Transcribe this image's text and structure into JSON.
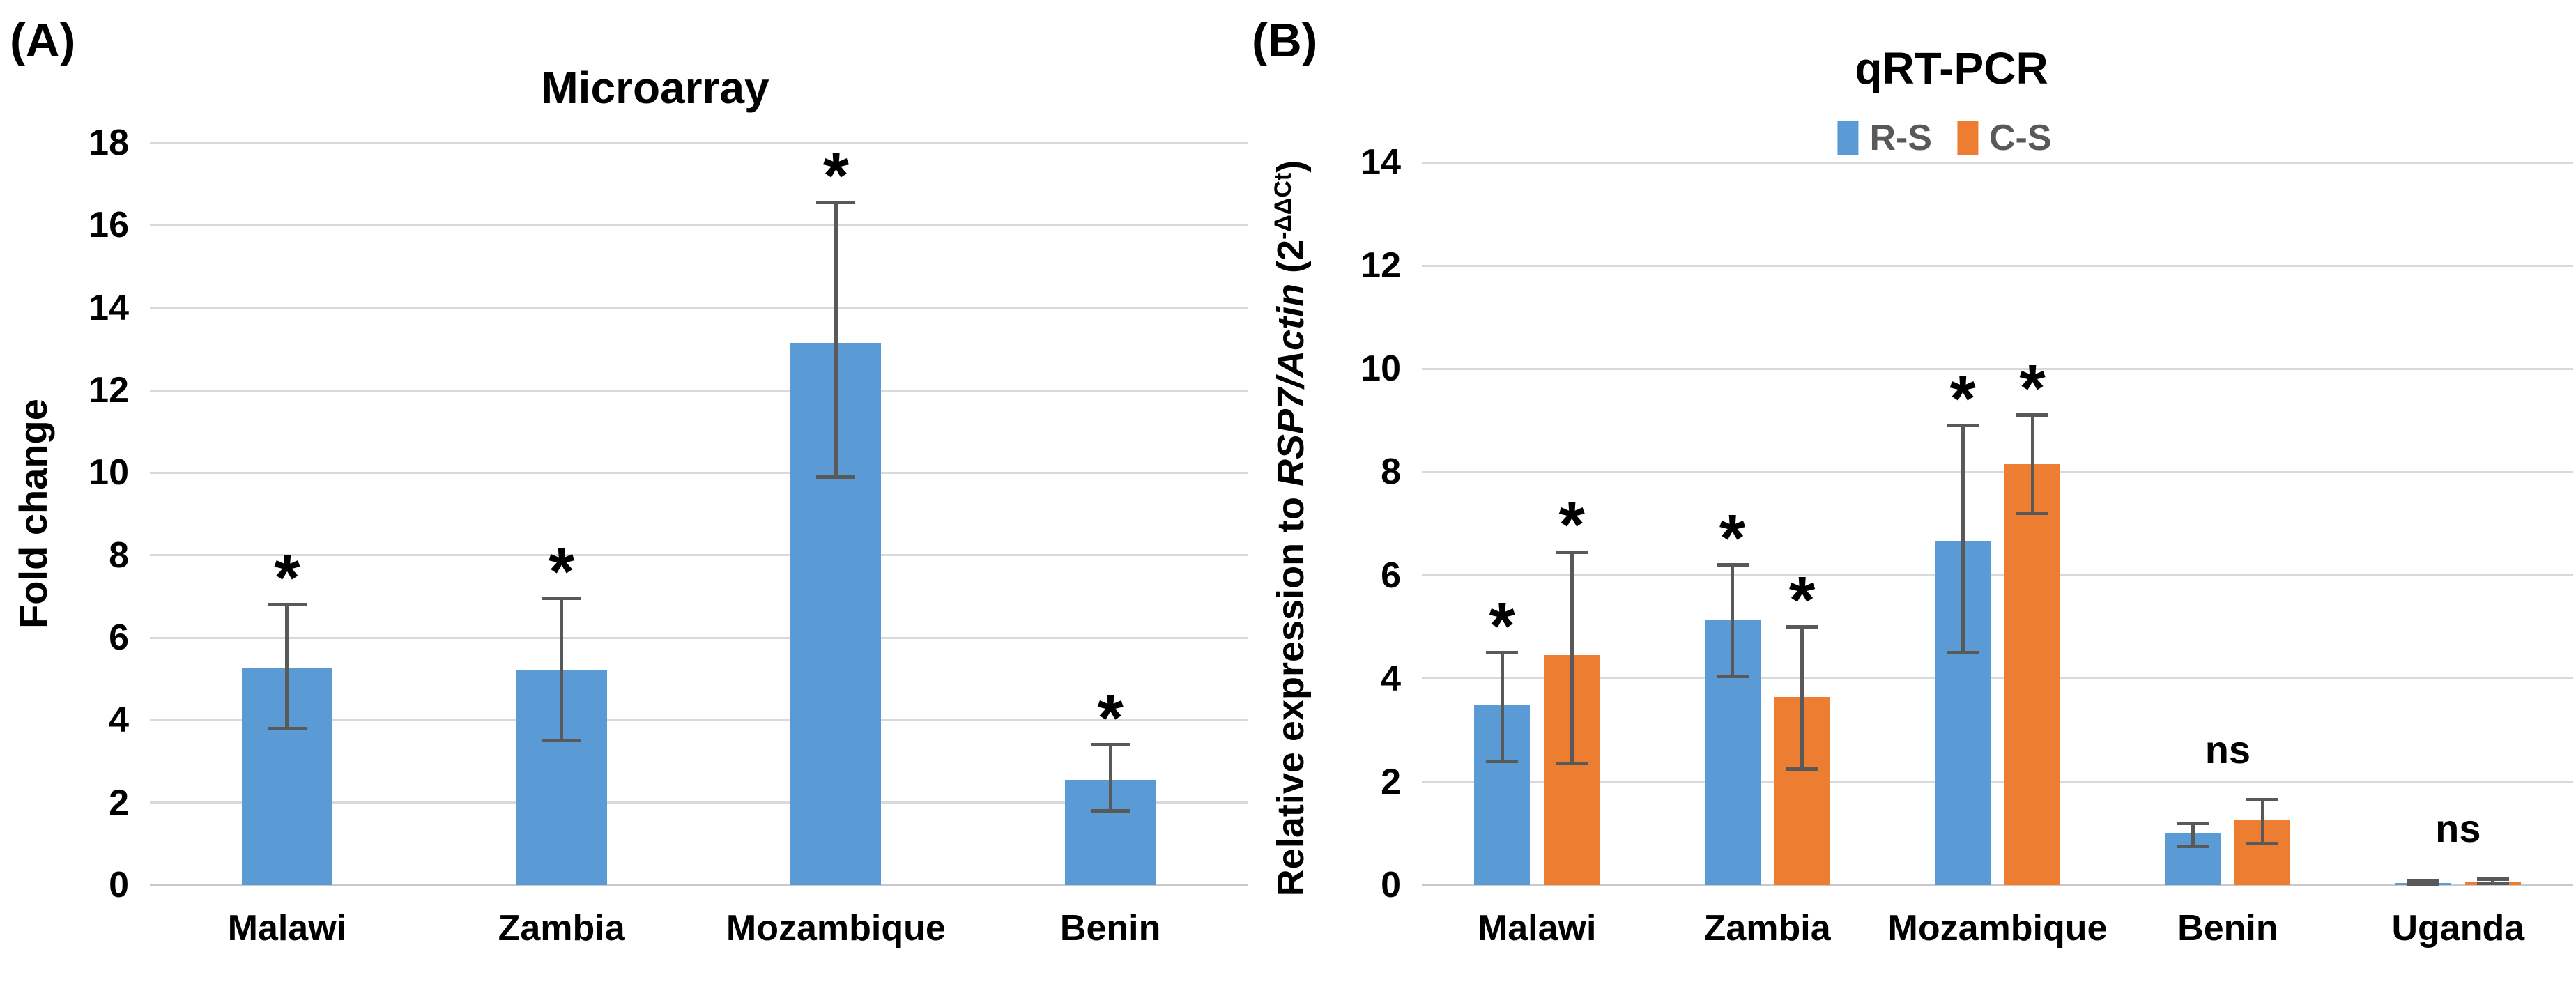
{
  "figure_title": "Microarray and qRT-PCR expression figure",
  "colors": {
    "series_blue": "#5B9BD5",
    "series_orange": "#ED7D31",
    "error_bar": "#595959",
    "gridline": "#D9D9D9",
    "axis_line": "#C9C9C9",
    "legend_text": "#595959",
    "text": "#000000"
  },
  "chart_data": [
    {
      "panel": "(A)",
      "type": "bar",
      "title": "Microarray",
      "xlabel": "",
      "ylabel": "Fold change",
      "ylabel_parts": [
        {
          "text": "Fold change",
          "style": "normal"
        }
      ],
      "ylim": [
        0,
        18
      ],
      "ytick_step": 2,
      "yticks": [
        0,
        2,
        4,
        6,
        8,
        10,
        12,
        14,
        16,
        18
      ],
      "grid": true,
      "legend": null,
      "categories": [
        "Malawi",
        "Zambia",
        "Mozambique",
        "Benin"
      ],
      "series": [
        {
          "name": "Fold change",
          "color": "#5B9BD5",
          "values": [
            5.25,
            5.2,
            13.15,
            2.55
          ],
          "error_low": [
            3.8,
            3.5,
            9.9,
            1.8
          ],
          "error_high": [
            6.8,
            6.95,
            16.55,
            3.4
          ],
          "significance": [
            "*",
            "*",
            "*",
            "*"
          ]
        }
      ],
      "group_significance": [
        null,
        null,
        null,
        null
      ]
    },
    {
      "panel": "(B)",
      "type": "bar",
      "title": "qRT-PCR",
      "xlabel": "",
      "ylabel": "Relative expression to RSP7/Actin (2-ΔΔCt)",
      "ylabel_parts": [
        {
          "text": "Relative expression to ",
          "style": "normal"
        },
        {
          "text": "RSP7/Actin",
          "style": "italic"
        },
        {
          "text": " (2",
          "style": "normal"
        },
        {
          "text": "-ΔΔCt",
          "style": "superscript"
        },
        {
          "text": ")",
          "style": "normal"
        }
      ],
      "ylim": [
        0,
        14
      ],
      "ytick_step": 2,
      "yticks": [
        0,
        2,
        4,
        6,
        8,
        10,
        12,
        14
      ],
      "grid": true,
      "legend": {
        "position": "top",
        "entries": [
          {
            "label": "R-S",
            "color": "#5B9BD5"
          },
          {
            "label": "C-S",
            "color": "#ED7D31"
          }
        ]
      },
      "categories": [
        "Malawi",
        "Zambia",
        "Mozambique",
        "Benin",
        "Uganda"
      ],
      "series": [
        {
          "name": "R-S",
          "color": "#5B9BD5",
          "values": [
            3.5,
            5.15,
            6.65,
            1.0,
            0.04
          ],
          "error_low": [
            2.4,
            4.05,
            4.5,
            0.75,
            0.02
          ],
          "error_high": [
            4.5,
            6.2,
            8.9,
            1.2,
            0.07
          ],
          "significance": [
            "*",
            "*",
            "*",
            null,
            null
          ]
        },
        {
          "name": "C-S",
          "color": "#ED7D31",
          "values": [
            4.45,
            3.65,
            8.15,
            1.25,
            0.07
          ],
          "error_low": [
            2.35,
            2.25,
            7.2,
            0.8,
            0.04
          ],
          "error_high": [
            6.45,
            5.0,
            9.1,
            1.65,
            0.12
          ],
          "significance": [
            "*",
            "*",
            "*",
            null,
            null
          ]
        }
      ],
      "group_significance": [
        null,
        null,
        null,
        "ns",
        "ns"
      ]
    }
  ]
}
